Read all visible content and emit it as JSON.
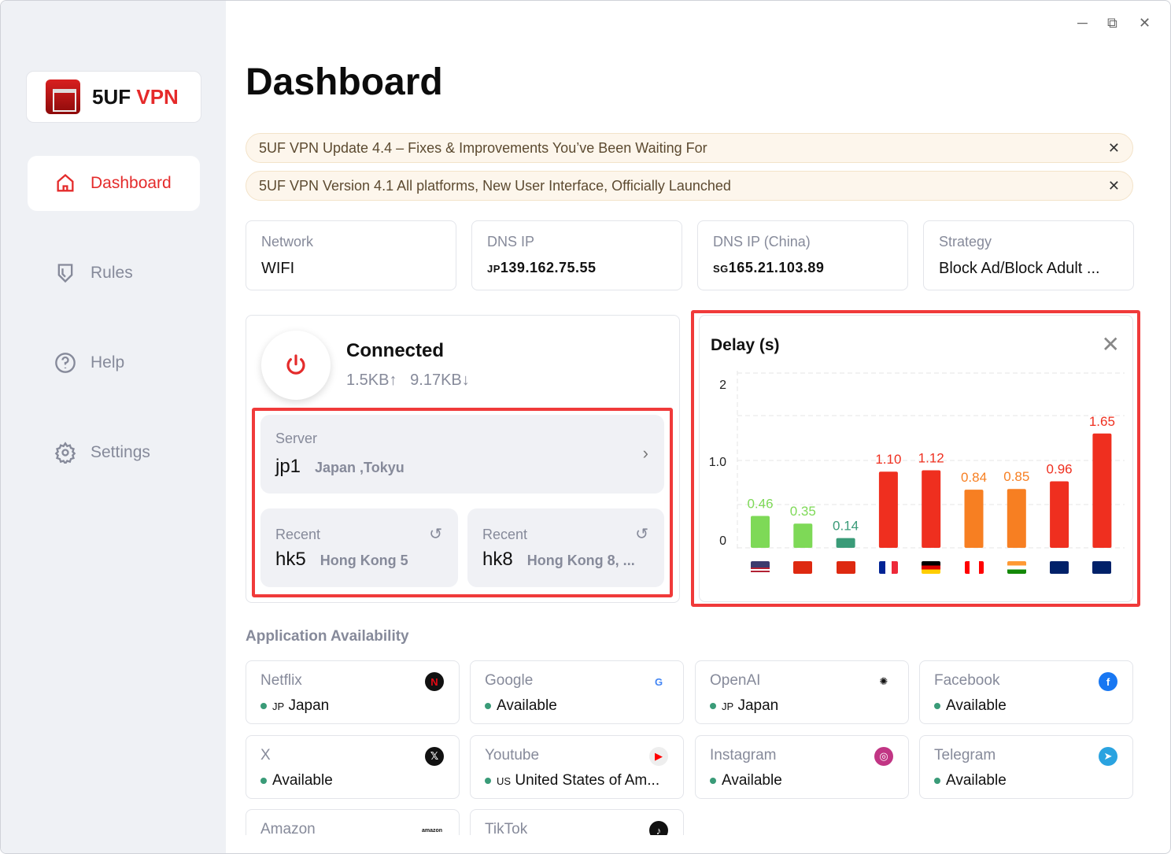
{
  "window": {
    "minimize": "─",
    "maximize": "⧉",
    "close": "✕"
  },
  "sidebar": {
    "logo_prefix": "5UF",
    "logo_suffix": "VPN",
    "items": [
      {
        "label": "Dashboard",
        "icon": "home-icon"
      },
      {
        "label": "Rules",
        "icon": "shield-icon"
      },
      {
        "label": "Help",
        "icon": "help-icon"
      },
      {
        "label": "Settings",
        "icon": "gear-icon"
      }
    ]
  },
  "page_title": "Dashboard",
  "notices": [
    {
      "text": "5UF VPN Update 4.4 – Fixes & Improvements You’ve Been Waiting For",
      "close": "✕"
    },
    {
      "text": "5UF VPN Version 4.1 All platforms, New User Interface, Officially Launched",
      "close": "✕"
    }
  ],
  "info": [
    {
      "label": "Network",
      "value": "WIFI",
      "prefix": ""
    },
    {
      "label": "DNS IP",
      "prefix": "JP",
      "value": "139.162.75.55"
    },
    {
      "label": "DNS IP (China)",
      "prefix": "SG",
      "value": "165.21.103.89"
    },
    {
      "label": "Strategy",
      "value": "Block Ad/Block Adult ...",
      "prefix": ""
    }
  ],
  "connection": {
    "status": "Connected",
    "upload": "1.5KB↑",
    "download": "9.17KB↓",
    "server": {
      "label": "Server",
      "code": "jp1",
      "location": "Japan ,Tokyu"
    },
    "recent": [
      {
        "label": "Recent",
        "code": "hk5",
        "location": "Hong Kong 5"
      },
      {
        "label": "Recent",
        "code": "hk8",
        "location": "Hong Kong 8, ..."
      }
    ]
  },
  "chart_data": {
    "type": "bar",
    "title": "Delay (s)",
    "close": "✕",
    "yticks": [
      "2",
      "1.0",
      "0"
    ],
    "categories": [
      "US",
      "HK",
      "CN",
      "FR",
      "DE",
      "CA",
      "IN",
      "AU",
      "GB"
    ],
    "values": [
      0.46,
      0.35,
      0.14,
      1.1,
      1.12,
      0.84,
      0.85,
      0.96,
      1.65
    ],
    "labels": [
      "0.46",
      "0.35",
      "0.14",
      "1.10",
      "1.12",
      "0.84",
      "0.85",
      "0.96",
      "1.65"
    ],
    "colors": [
      "#7ed957",
      "#7ed957",
      "#3a9b78",
      "#ef2f1f",
      "#ef2f1f",
      "#f77f22",
      "#f77f22",
      "#ef2f1f",
      "#ef2f1f"
    ]
  },
  "apps": {
    "title": "Application Availability",
    "items": [
      {
        "name": "Netflix",
        "prefix": "JP",
        "status": "Japan",
        "icon": "N",
        "bg": "#111",
        "fg": "#e50914"
      },
      {
        "name": "Google",
        "prefix": "",
        "status": "Available",
        "icon": "G",
        "bg": "#fff",
        "fg": "#4285f4"
      },
      {
        "name": "OpenAI",
        "prefix": "JP",
        "status": "Japan",
        "icon": "✺",
        "bg": "#fff",
        "fg": "#111"
      },
      {
        "name": "Facebook",
        "prefix": "",
        "status": "Available",
        "icon": "f",
        "bg": "#1877f2",
        "fg": "#fff"
      },
      {
        "name": "X",
        "prefix": "",
        "status": "Available",
        "icon": "𝕏",
        "bg": "#111",
        "fg": "#fff"
      },
      {
        "name": "Youtube",
        "prefix": "US",
        "status": "United States of Am...",
        "icon": "▶",
        "bg": "#eee",
        "fg": "#f00"
      },
      {
        "name": "Instagram",
        "prefix": "",
        "status": "Available",
        "icon": "◎",
        "bg": "#c13584",
        "fg": "#fff"
      },
      {
        "name": "Telegram",
        "prefix": "",
        "status": "Available",
        "icon": "➤",
        "bg": "#2aa3e0",
        "fg": "#fff"
      },
      {
        "name": "Amazon",
        "prefix": "",
        "status": "",
        "icon": "amazon",
        "bg": "#fff",
        "fg": "#111"
      },
      {
        "name": "TikTok",
        "prefix": "",
        "status": "",
        "icon": "♪",
        "bg": "#111",
        "fg": "#fff"
      }
    ]
  }
}
